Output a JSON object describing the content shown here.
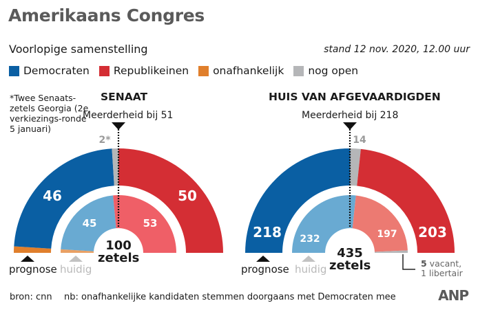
{
  "header": {
    "title": "Amerikaans Congres",
    "subtitle": "Voorlopige samenstelling",
    "stand": "stand 12 nov. 2020, 12.00 uur"
  },
  "legend": [
    {
      "label": "Democraten",
      "color": "#0a5fa3"
    },
    {
      "label": "Republikeinen",
      "color": "#d42e34"
    },
    {
      "label": "onafhankelijk",
      "color": "#e07f2c"
    },
    {
      "label": "nog open",
      "color": "#b5b6b8"
    }
  ],
  "footnote": "*Twee Senaats-zetels Georgia (2e verkiezings-ronde 5 januari)",
  "labels": {
    "prognose": "prognose",
    "huidig": "huidig"
  },
  "footer": {
    "source": "bron: cnn",
    "note": "nb: onafhankelijke kandidaten stemmen doorgaans met Democraten mee",
    "brand": "ANP"
  },
  "chart_data": [
    {
      "type": "pie",
      "variant": "semicircle-parliament",
      "title": "SENAAT",
      "majority_label": "Meerderheid bij 51",
      "majority": 51,
      "total": 100,
      "total_label": "100",
      "total_unit": "zetels",
      "outer_ring": {
        "name": "prognose",
        "segments": [
          {
            "party": "onafhankelijk",
            "value": 2,
            "label": "2*",
            "color": "#e07f2c"
          },
          {
            "party": "Democraten",
            "value": 46,
            "label": "46",
            "color": "#0a5fa3"
          },
          {
            "party": "nog open",
            "value": 2,
            "label": "2*",
            "color": "#b5b6b8"
          },
          {
            "party": "Republikeinen",
            "value": 50,
            "label": "50",
            "color": "#d42e34"
          }
        ]
      },
      "inner_ring": {
        "name": "huidig",
        "segments": [
          {
            "party": "onafhankelijk",
            "value": 2,
            "label": "2",
            "color": "#e9a064"
          },
          {
            "party": "Democraten",
            "value": 45,
            "label": "45",
            "color": "#69aad2"
          },
          {
            "party": "Republikeinen",
            "value": 53,
            "label": "53",
            "color": "#ef5f67"
          }
        ]
      }
    },
    {
      "type": "pie",
      "variant": "semicircle-parliament",
      "title": "HUIS VAN AFGEVAARDIGDEN",
      "majority_label": "Meerderheid bij 218",
      "majority": 218,
      "total": 435,
      "total_label": "435",
      "total_unit": "zetels",
      "outer_ring": {
        "name": "prognose",
        "segments": [
          {
            "party": "Democraten",
            "value": 218,
            "label": "218",
            "color": "#0a5fa3"
          },
          {
            "party": "nog open",
            "value": 14,
            "label": "14",
            "color": "#b5b6b8"
          },
          {
            "party": "Republikeinen",
            "value": 203,
            "label": "203",
            "color": "#d42e34"
          }
        ]
      },
      "inner_ring": {
        "name": "huidig",
        "segments": [
          {
            "party": "Democraten",
            "value": 232,
            "label": "232",
            "color": "#69aad2"
          },
          {
            "party": "Republikeinen",
            "value": 197,
            "label": "197",
            "color": "#ec7a72"
          },
          {
            "party": "overig",
            "value": 6,
            "label": "",
            "color": "#b5b6b8"
          }
        ]
      },
      "annotation": {
        "number": "5",
        "text1": " vacant,",
        "text2": "1 libertair"
      }
    }
  ]
}
